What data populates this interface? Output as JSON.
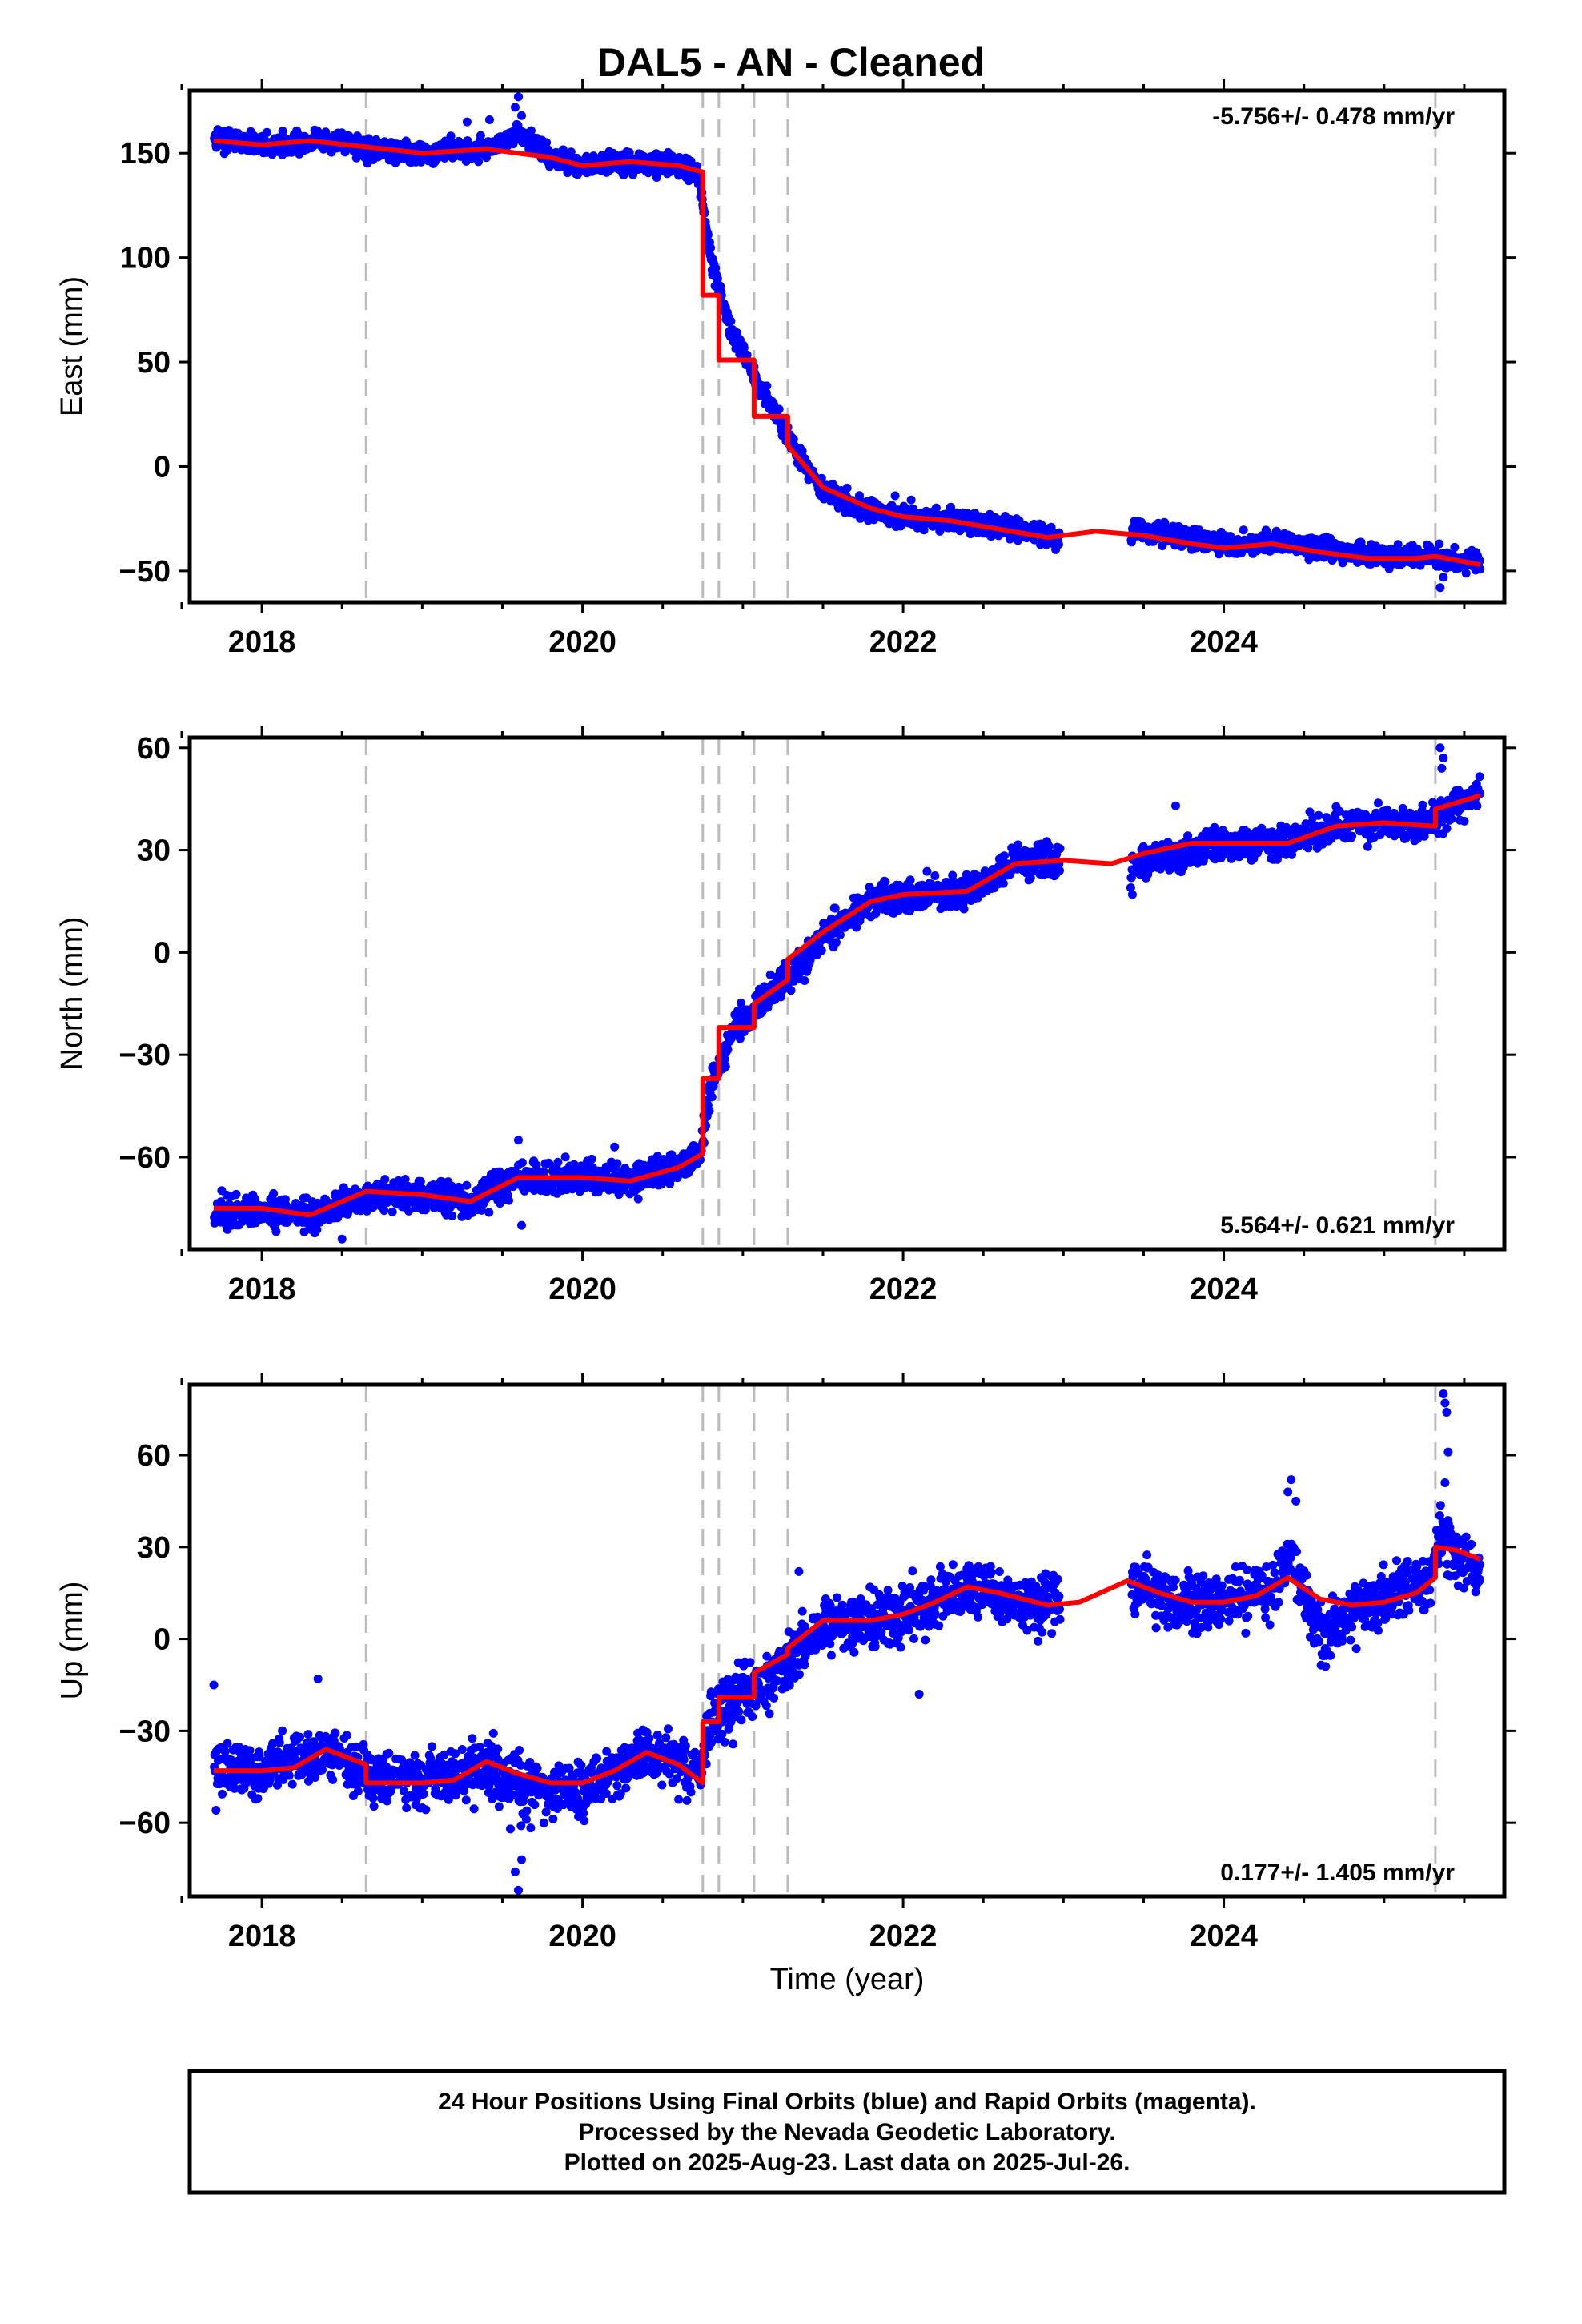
{
  "chart_data": {
    "type": "scatter",
    "title": "DAL5  - AN - Cleaned",
    "xlabel": "Time (year)",
    "xlim": [
      2017.55,
      2025.75
    ],
    "x_ticks": [
      2018,
      2020,
      2022,
      2024
    ],
    "x_minor_ticks": [
      2017.5,
      2018.5,
      2019,
      2019.5,
      2020.5,
      2021,
      2021.5,
      2022.5,
      2023,
      2023.5,
      2024.5,
      2025,
      2025.5
    ],
    "event_lines_year": [
      2018.65,
      2020.75,
      2020.85,
      2021.07,
      2021.28,
      2025.32
    ],
    "legend": "none",
    "grid": false,
    "colors": {
      "points": "#0000ff",
      "model": "#ff0000",
      "event_lines": "#bbbbbb"
    },
    "panels": [
      {
        "name": "east",
        "ylabel": "East (mm)",
        "ylim": [
          -65,
          180
        ],
        "y_ticks": [
          -50,
          0,
          50,
          100,
          150
        ],
        "rate_label": "-5.756+/- 0.478 mm/yr",
        "rate_position": "top-right",
        "model": {
          "x": [
            2017.7,
            2018.0,
            2018.3,
            2018.65,
            2019.0,
            2019.4,
            2019.8,
            2020.0,
            2020.3,
            2020.6,
            2020.75,
            2020.75,
            2020.85,
            2020.85,
            2021.07,
            2021.07,
            2021.28,
            2021.28,
            2021.5,
            2021.8,
            2022.0,
            2022.3,
            2022.6,
            2022.9,
            2023.2,
            2023.5,
            2023.8,
            2024.0,
            2024.3,
            2024.6,
            2024.9,
            2025.2,
            2025.32,
            2025.32,
            2025.6
          ],
          "y": [
            156,
            154,
            156,
            153,
            150,
            152,
            148,
            144,
            146,
            144,
            141,
            82,
            82,
            51,
            51,
            24,
            24,
            10,
            -10,
            -20,
            -24,
            -26,
            -30,
            -34,
            -31,
            -33,
            -37,
            -39,
            -37,
            -41,
            -44,
            -44,
            -43,
            -43,
            -47
          ]
        },
        "anchors": {
          "x": [
            2017.7,
            2018.0,
            2018.4,
            2018.65,
            2019.0,
            2019.4,
            2019.6,
            2019.8,
            2020.0,
            2020.3,
            2020.6,
            2020.72,
            2020.8,
            2020.9,
            2021.1,
            2021.3,
            2021.5,
            2021.8,
            2022.0,
            2022.4,
            2022.8,
            2022.95,
            2023.42,
            2023.8,
            2024.0,
            2024.4,
            2024.7,
            2025.0,
            2025.3,
            2025.45,
            2025.6
          ],
          "y": [
            157,
            154,
            156,
            152,
            150,
            152,
            160,
            148,
            144,
            146,
            144,
            140,
            100,
            70,
            40,
            12,
            -12,
            -22,
            -24,
            -27,
            -31,
            -34,
            -31,
            -34,
            -38,
            -36,
            -41,
            -43,
            -43,
            -45,
            -46
          ]
        },
        "noise_sd": 2.5,
        "gaps": [
          [
            2022.98,
            2023.42
          ]
        ],
        "outliers": {
          "x": [
            2019.58,
            2019.6,
            2019.62,
            2019.42,
            2019.28,
            2025.35,
            2025.37,
            2021.95,
            2022.05
          ],
          "y": [
            172,
            177,
            168,
            166,
            165,
            -58,
            -53,
            -14,
            -16
          ]
        }
      },
      {
        "name": "north",
        "ylabel": "North (mm)",
        "ylim": [
          -87,
          63
        ],
        "y_ticks": [
          -60,
          -30,
          0,
          30,
          60
        ],
        "rate_label": "5.564+/- 0.621 mm/yr",
        "rate_position": "bottom-right",
        "model": {
          "x": [
            2017.7,
            2018.0,
            2018.3,
            2018.5,
            2018.65,
            2019.0,
            2019.3,
            2019.6,
            2020.0,
            2020.3,
            2020.6,
            2020.75,
            2020.75,
            2020.85,
            2020.85,
            2021.07,
            2021.07,
            2021.28,
            2021.28,
            2021.5,
            2021.8,
            2022.0,
            2022.4,
            2022.7,
            2023.0,
            2023.3,
            2023.5,
            2023.8,
            2024.0,
            2024.4,
            2024.7,
            2025.0,
            2025.32,
            2025.32,
            2025.6
          ],
          "y": [
            -75,
            -75,
            -77,
            -73,
            -70,
            -71,
            -73,
            -66,
            -66,
            -67,
            -63,
            -59,
            -37,
            -37,
            -22,
            -22,
            -15,
            -8,
            -2,
            6,
            15,
            17,
            18,
            26,
            27,
            26,
            29,
            32,
            32,
            32,
            37,
            38,
            37,
            42,
            46
          ]
        },
        "anchors": {
          "x": [
            2017.7,
            2018.0,
            2018.3,
            2018.65,
            2019.0,
            2019.3,
            2019.6,
            2020.0,
            2020.3,
            2020.6,
            2020.73,
            2020.8,
            2020.95,
            2021.15,
            2021.35,
            2021.55,
            2021.8,
            2022.0,
            2022.4,
            2022.7,
            2022.95,
            2023.42,
            2023.8,
            2024.0,
            2024.4,
            2024.7,
            2025.0,
            2025.3,
            2025.45,
            2025.6
          ],
          "y": [
            -76,
            -76,
            -77,
            -71,
            -71,
            -73,
            -66,
            -66,
            -67,
            -63,
            -59,
            -38,
            -22,
            -13,
            -4,
            7,
            15,
            17,
            18,
            26,
            27,
            25,
            30,
            32,
            32,
            37,
            38,
            38,
            44,
            46
          ]
        },
        "noise_sd": 2.3,
        "gaps": [
          [
            2022.98,
            2023.42
          ]
        ],
        "outliers": {
          "x": [
            2025.35,
            2025.37,
            2025.36,
            2019.62,
            2019.6,
            2020.2,
            2023.42,
            2023.43,
            2018.5,
            2023.7
          ],
          "y": [
            60,
            57,
            54,
            -80,
            -55,
            -57,
            19,
            17,
            -84,
            43
          ]
        }
      },
      {
        "name": "up",
        "ylabel": "Up (mm)",
        "ylim": [
          -84,
          83
        ],
        "y_ticks": [
          -60,
          -30,
          0,
          30,
          60
        ],
        "rate_label": "0.177+/- 1.405 mm/yr",
        "rate_position": "bottom-right",
        "model": {
          "x": [
            2017.7,
            2018.0,
            2018.2,
            2018.4,
            2018.6,
            2018.65,
            2018.65,
            2019.0,
            2019.2,
            2019.4,
            2019.6,
            2019.8,
            2020.0,
            2020.2,
            2020.4,
            2020.6,
            2020.75,
            2020.75,
            2020.85,
            2020.85,
            2021.07,
            2021.07,
            2021.28,
            2021.28,
            2021.5,
            2021.8,
            2022.0,
            2022.2,
            2022.4,
            2022.6,
            2022.9,
            2023.1,
            2023.4,
            2023.6,
            2023.8,
            2024.0,
            2024.2,
            2024.4,
            2024.6,
            2024.8,
            2025.0,
            2025.2,
            2025.32,
            2025.32,
            2025.45,
            2025.6
          ],
          "y": [
            -43,
            -43,
            -42,
            -36,
            -40,
            -41,
            -47,
            -47,
            -46,
            -40,
            -44,
            -47,
            -47,
            -43,
            -37,
            -41,
            -47,
            -27,
            -27,
            -19,
            -19,
            -11,
            -5,
            -3,
            6,
            6,
            8,
            12,
            17,
            15,
            11,
            12,
            19,
            15,
            12,
            12,
            14,
            20,
            13,
            11,
            12,
            15,
            20,
            30,
            29,
            26
          ]
        },
        "anchors": {
          "x": [
            2017.7,
            2018.0,
            2018.4,
            2018.65,
            2019.0,
            2019.4,
            2019.6,
            2020.0,
            2020.4,
            2020.6,
            2020.73,
            2020.8,
            2020.95,
            2021.15,
            2021.3,
            2021.5,
            2021.8,
            2022.0,
            2022.4,
            2022.7,
            2022.95,
            2023.42,
            2023.7,
            2024.0,
            2024.3,
            2024.4,
            2024.5,
            2024.62,
            2024.8,
            2025.0,
            2025.3,
            2025.35,
            2025.45,
            2025.6
          ],
          "y": [
            -43,
            -43,
            -36,
            -44,
            -47,
            -41,
            -48,
            -50,
            -38,
            -42,
            -46,
            -26,
            -20,
            -14,
            -6,
            5,
            6,
            8,
            17,
            12,
            12,
            18,
            12,
            12,
            16,
            26,
            14,
            0,
            10,
            13,
            18,
            36,
            28,
            22
          ]
        },
        "noise_sd": 4.5,
        "gaps": [
          [
            2022.98,
            2023.42
          ]
        ],
        "outliers": {
          "x": [
            2025.37,
            2025.38,
            2025.39,
            2025.4,
            2025.38,
            2019.58,
            2019.6,
            2019.62,
            2019.55,
            2017.7,
            2018.35,
            2024.4,
            2024.42,
            2024.45,
            2022.1,
            2021.35
          ],
          "y": [
            80,
            77,
            74,
            61,
            51,
            -76,
            -82,
            -72,
            -62,
            -15,
            -13,
            48,
            52,
            45,
            -18,
            22
          ]
        }
      }
    ],
    "footer": [
      "24 Hour Positions Using Final Orbits (blue) and Rapid Orbits (magenta).",
      "Processed by the Nevada Geodetic Laboratory.",
      "Plotted on 2025-Aug-23. Last data on 2025-Jul-26."
    ]
  }
}
